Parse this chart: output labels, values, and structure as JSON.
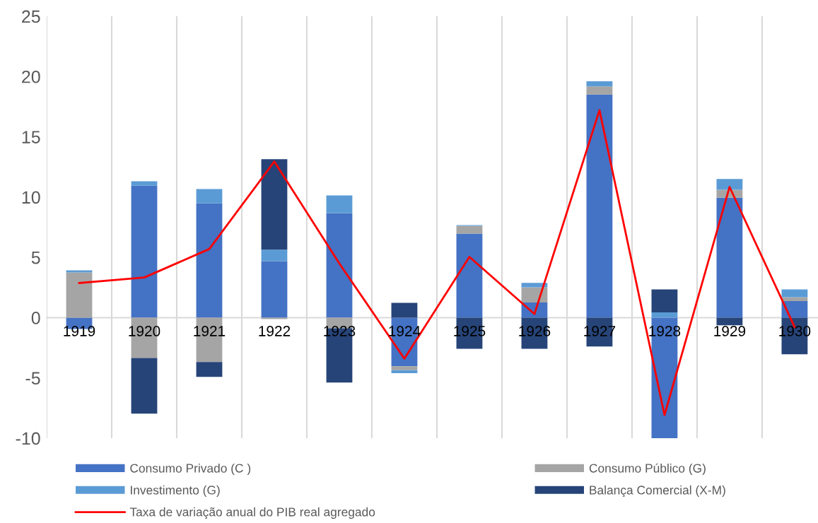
{
  "chart_data": {
    "type": "bar",
    "stacked": true,
    "categories": [
      "1919",
      "1920",
      "1921",
      "1922",
      "1923",
      "1924",
      "1925",
      "1926",
      "1927",
      "1928",
      "1929",
      "1930"
    ],
    "series": [
      {
        "name": "Consumo Privado (C )",
        "color": "#4472c4",
        "values": [
          -0.94,
          10.94,
          9.48,
          4.68,
          8.67,
          -4.04,
          6.97,
          1.26,
          18.5,
          -10,
          9.95,
          1.38
        ]
      },
      {
        "name": "Consumo Público (G)",
        "color": "#a5a5a5",
        "values": [
          3.75,
          -3.34,
          -3.69,
          -0.12,
          -0.88,
          -0.32,
          0.64,
          1.25,
          0.68,
          null,
          0.66,
          0.31
        ]
      },
      {
        "name": "Investimento (G)",
        "color": "#5b9bd5",
        "values": [
          0.17,
          0.37,
          1.18,
          0.96,
          1.47,
          -0.25,
          0.07,
          0.37,
          0.42,
          0.44,
          0.89,
          0.65
        ]
      },
      {
        "name": "Balança Comercial (X-M)",
        "color": "#264478",
        "values": [
          null,
          -4.62,
          -1.23,
          7.5,
          -4.51,
          1.23,
          -2.58,
          -2.58,
          -2.4,
          1.9,
          -0.63,
          -3.04
        ]
      },
      {
        "name": "Taxa de variação anual do PIB real agregado",
        "type": "line",
        "color": "#ff0000",
        "values": [
          2.87,
          3.33,
          5.69,
          12.95,
          4.5,
          -3.4,
          5.04,
          0.3,
          17.21,
          -8.08,
          10.84,
          -0.77
        ]
      }
    ],
    "ylim": [
      -10,
      25
    ],
    "yticks": [
      -10,
      -5,
      0,
      5,
      10,
      15,
      20,
      25
    ],
    "grid": "x",
    "legend": "bottom",
    "marker": "none",
    "line_style": "solid"
  }
}
